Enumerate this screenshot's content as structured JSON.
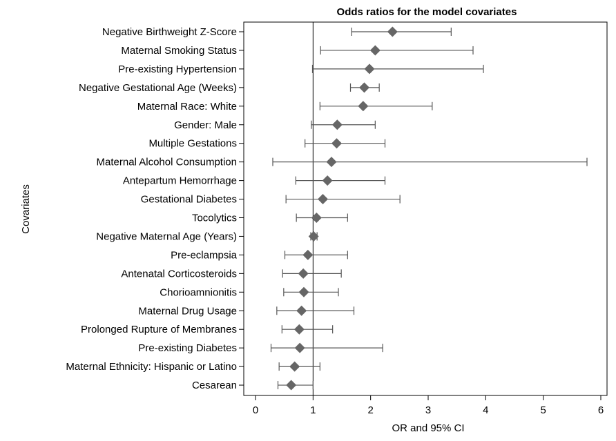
{
  "chart_data": {
    "type": "forest",
    "title": "Odds ratios for the model covariates",
    "xlabel": "OR and 95% CI",
    "ylabel": "Covariates",
    "xlim": [
      0,
      6
    ],
    "xticks": [
      0,
      1,
      2,
      3,
      4,
      5,
      6
    ],
    "reference_line": 1,
    "grid": false,
    "marker": "diamond",
    "marker_color": "#666666",
    "rows": [
      {
        "label": "Negative Birthweight Z-Score",
        "or": 2.38,
        "lo": 1.67,
        "hi": 3.4
      },
      {
        "label": "Maternal Smoking Status",
        "or": 2.08,
        "lo": 1.13,
        "hi": 3.78
      },
      {
        "label": "Pre-existing Hypertension",
        "or": 1.98,
        "lo": 0.99,
        "hi": 3.96
      },
      {
        "label": "Negative Gestational Age (Weeks)",
        "or": 1.89,
        "lo": 1.65,
        "hi": 2.15
      },
      {
        "label": "Maternal Race: White",
        "or": 1.87,
        "lo": 1.12,
        "hi": 3.07
      },
      {
        "label": "Gender: Male",
        "or": 1.42,
        "lo": 0.97,
        "hi": 2.08
      },
      {
        "label": "Multiple Gestations",
        "or": 1.41,
        "lo": 0.86,
        "hi": 2.25
      },
      {
        "label": "Maternal Alcohol Consumption",
        "or": 1.32,
        "lo": 0.3,
        "hi": 5.76
      },
      {
        "label": "Antepartum Hemorrhage",
        "or": 1.25,
        "lo": 0.7,
        "hi": 2.25
      },
      {
        "label": "Gestational Diabetes",
        "or": 1.17,
        "lo": 0.53,
        "hi": 2.51
      },
      {
        "label": "Tocolytics",
        "or": 1.06,
        "lo": 0.71,
        "hi": 1.6
      },
      {
        "label": "Negative Maternal Age (Years)",
        "or": 1.01,
        "lo": 0.96,
        "hi": 1.07
      },
      {
        "label": "Pre-eclampsia",
        "or": 0.91,
        "lo": 0.51,
        "hi": 1.6
      },
      {
        "label": "Antenatal Corticosteroids",
        "or": 0.83,
        "lo": 0.47,
        "hi": 1.49
      },
      {
        "label": "Chorioamnionitis",
        "or": 0.84,
        "lo": 0.49,
        "hi": 1.44
      },
      {
        "label": "Maternal Drug Usage",
        "or": 0.8,
        "lo": 0.37,
        "hi": 1.71
      },
      {
        "label": "Prolonged Rupture of Membranes",
        "or": 0.76,
        "lo": 0.46,
        "hi": 1.34
      },
      {
        "label": "Pre-existing Diabetes",
        "or": 0.77,
        "lo": 0.27,
        "hi": 2.21
      },
      {
        "label": "Maternal Ethnicity: Hispanic or Latino",
        "or": 0.68,
        "lo": 0.41,
        "hi": 1.12
      },
      {
        "label": "Cesarean",
        "or": 0.62,
        "lo": 0.39,
        "hi": 1.0
      }
    ]
  }
}
